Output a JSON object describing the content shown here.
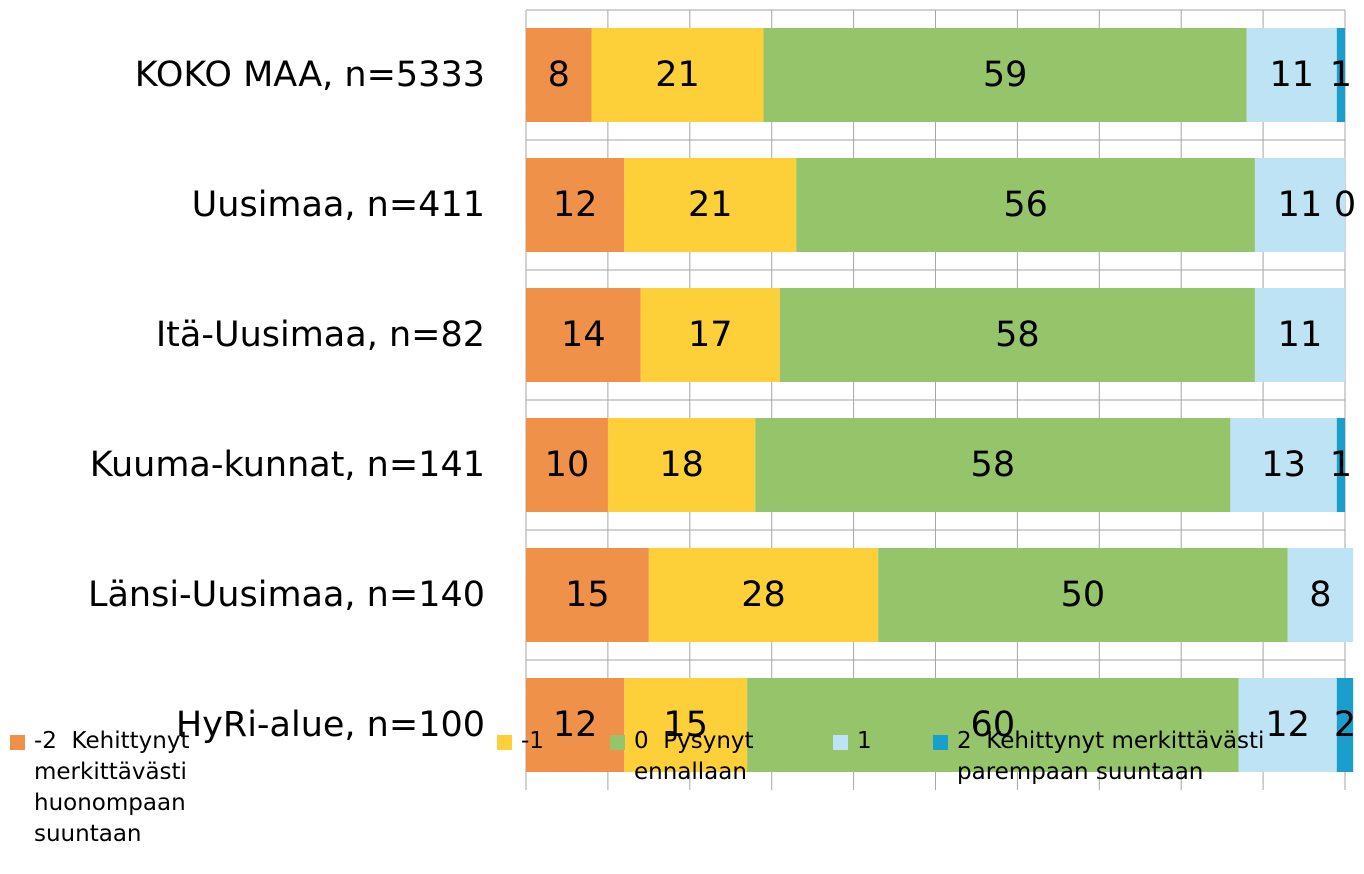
{
  "chart_data": {
    "type": "stacked_bar_horizontal",
    "categories": [
      "KOKO MAA, n=5333",
      "Uusimaa, n=411",
      "Itä-Uusimaa, n=82",
      "Kuuma-kunnat, n=141",
      "Länsi-Uusimaa, n=140",
      "HyRi-alue, n=100"
    ],
    "series": [
      {
        "name": "-2  Kehittynyt merkittävästi huonompaan suuntaan",
        "color": "#f0914a",
        "values": [
          8,
          12,
          14,
          10,
          15,
          12
        ]
      },
      {
        "name": "-1",
        "color": "#fdd03a",
        "values": [
          21,
          21,
          17,
          18,
          28,
          15
        ]
      },
      {
        "name": "0  Pysynyt ennallaan",
        "color": "#95c46b",
        "values": [
          59,
          56,
          58,
          58,
          50,
          60
        ]
      },
      {
        "name": "1",
        "color": "#bde3f5",
        "values": [
          11,
          11,
          11,
          13,
          8,
          12
        ]
      },
      {
        "name": "2  Kehittynyt merkittävästi parempaan suuntaan",
        "color": "#1a9fcc",
        "values": [
          1,
          0,
          null,
          1,
          null,
          2
        ]
      }
    ],
    "xlim": [
      0,
      100
    ],
    "xticks": [
      0,
      10,
      20,
      30,
      40,
      50,
      60,
      70,
      80,
      90,
      100
    ],
    "grid": true,
    "legend": "bottom"
  }
}
